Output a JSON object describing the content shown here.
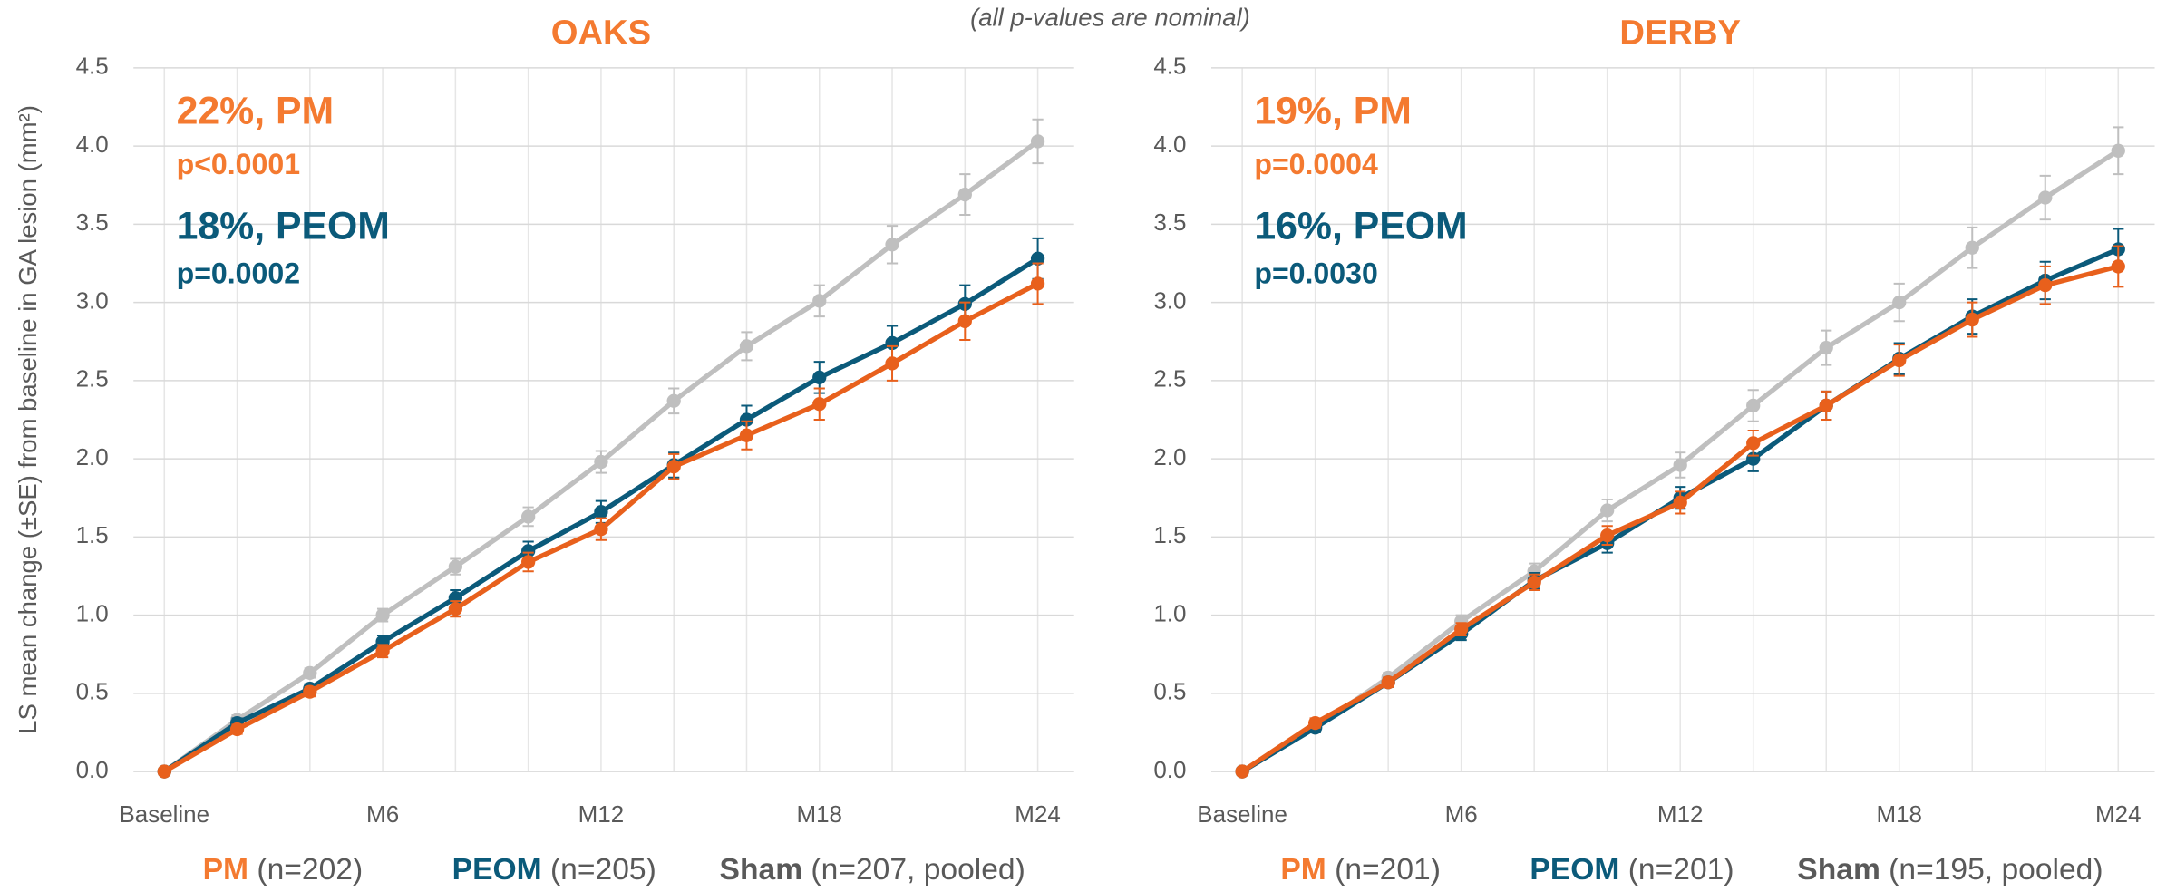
{
  "subtitle": "(all p-values are nominal)",
  "chart_data": [
    {
      "type": "line",
      "title": "OAKS",
      "y_label": "LS mean change (±SE) from baseline in GA lesion (mm²)",
      "categories": [
        "Baseline",
        null,
        null,
        "M6",
        null,
        null,
        "M12",
        null,
        null,
        "M18",
        null,
        null,
        "M24"
      ],
      "ylim": [
        0,
        4.5
      ],
      "yticks": [
        {
          "value": 0,
          "label": "0.0"
        },
        {
          "value": 0.5,
          "label": "0.5"
        },
        {
          "value": 1,
          "label": "1.0"
        },
        {
          "value": 1.5,
          "label": "1.5"
        },
        {
          "value": 2,
          "label": "2.0"
        },
        {
          "value": 2.5,
          "label": "2.5"
        },
        {
          "value": 3,
          "label": "3.0"
        },
        {
          "value": 3.5,
          "label": "3.5"
        },
        {
          "value": 4,
          "label": "4.0"
        },
        {
          "value": 4.5,
          "label": "4.5"
        }
      ],
      "grid": true,
      "annotations": [
        {
          "text": "22%, PM",
          "color": "#f47a30"
        },
        {
          "text": "p<0.0001",
          "color": "#f47a30"
        },
        {
          "text": "18%, PEOM",
          "color": "#0b5a7a"
        },
        {
          "text": "p=0.0002",
          "color": "#0b5a7a"
        }
      ],
      "series": [
        {
          "name": "Sham",
          "note": "(n=207, pooled)",
          "color": "#bfbfbf",
          "legend_color": "#595959",
          "values": [
            0,
            0.33,
            0.63,
            1.0,
            1.31,
            1.63,
            1.98,
            2.37,
            2.72,
            3.01,
            3.37,
            3.69,
            4.03
          ],
          "errors": [
            0,
            0.03,
            0.03,
            0.04,
            0.05,
            0.06,
            0.07,
            0.08,
            0.09,
            0.1,
            0.12,
            0.13,
            0.14
          ]
        },
        {
          "name": "PEOM",
          "note": "(n=205)",
          "color": "#0b5a7a",
          "legend_color": "#0b5a7a",
          "values": [
            0,
            0.31,
            0.53,
            0.83,
            1.11,
            1.41,
            1.66,
            1.96,
            2.25,
            2.52,
            2.74,
            2.99,
            3.28
          ],
          "errors": [
            0,
            0.03,
            0.03,
            0.04,
            0.05,
            0.06,
            0.07,
            0.08,
            0.09,
            0.1,
            0.11,
            0.12,
            0.13
          ]
        },
        {
          "name": "PM",
          "note": "(n=202)",
          "color": "#e8601c",
          "legend_color": "#f47a30",
          "values": [
            0,
            0.27,
            0.51,
            0.77,
            1.04,
            1.34,
            1.55,
            1.95,
            2.15,
            2.35,
            2.61,
            2.88,
            3.12
          ],
          "errors": [
            0,
            0.03,
            0.03,
            0.04,
            0.05,
            0.06,
            0.07,
            0.08,
            0.09,
            0.1,
            0.11,
            0.12,
            0.13
          ]
        }
      ]
    },
    {
      "type": "line",
      "title": "DERBY",
      "categories": [
        "Baseline",
        null,
        null,
        "M6",
        null,
        null,
        "M12",
        null,
        null,
        "M18",
        null,
        null,
        "M24"
      ],
      "ylim": [
        0,
        4.5
      ],
      "yticks": [
        {
          "value": 0,
          "label": "0.0"
        },
        {
          "value": 0.5,
          "label": "0.5"
        },
        {
          "value": 1,
          "label": "1.0"
        },
        {
          "value": 1.5,
          "label": "1.5"
        },
        {
          "value": 2,
          "label": "2.0"
        },
        {
          "value": 2.5,
          "label": "2.5"
        },
        {
          "value": 3,
          "label": "3.0"
        },
        {
          "value": 3.5,
          "label": "3.5"
        },
        {
          "value": 4,
          "label": "4.0"
        },
        {
          "value": 4.5,
          "label": "4.5"
        }
      ],
      "grid": true,
      "annotations": [
        {
          "text": "19%, PM",
          "color": "#f47a30"
        },
        {
          "text": "p=0.0004",
          "color": "#f47a30"
        },
        {
          "text": "16%, PEOM",
          "color": "#0b5a7a"
        },
        {
          "text": "p=0.0030",
          "color": "#0b5a7a"
        }
      ],
      "series": [
        {
          "name": "Sham",
          "note": "(n=195, pooled)",
          "color": "#bfbfbf",
          "legend_color": "#595959",
          "values": [
            0,
            0.28,
            0.6,
            0.96,
            1.28,
            1.67,
            1.96,
            2.34,
            2.71,
            3.0,
            3.35,
            3.67,
            3.97
          ],
          "errors": [
            0,
            0.03,
            0.03,
            0.04,
            0.05,
            0.07,
            0.08,
            0.1,
            0.11,
            0.12,
            0.13,
            0.14,
            0.15
          ]
        },
        {
          "name": "PEOM",
          "note": "(n=201)",
          "color": "#0b5a7a",
          "legend_color": "#0b5a7a",
          "values": [
            0,
            0.28,
            0.57,
            0.88,
            1.22,
            1.46,
            1.75,
            2.0,
            2.34,
            2.64,
            2.91,
            3.14,
            3.34
          ],
          "errors": [
            0,
            0.03,
            0.03,
            0.04,
            0.05,
            0.06,
            0.07,
            0.08,
            0.09,
            0.1,
            0.11,
            0.12,
            0.13
          ]
        },
        {
          "name": "PM",
          "note": "(n=201)",
          "color": "#e8601c",
          "legend_color": "#f47a30",
          "values": [
            0,
            0.31,
            0.57,
            0.91,
            1.21,
            1.51,
            1.72,
            2.1,
            2.34,
            2.63,
            2.89,
            3.11,
            3.23
          ],
          "errors": [
            0,
            0.03,
            0.03,
            0.04,
            0.05,
            0.06,
            0.07,
            0.08,
            0.09,
            0.1,
            0.11,
            0.12,
            0.13
          ]
        }
      ]
    }
  ]
}
